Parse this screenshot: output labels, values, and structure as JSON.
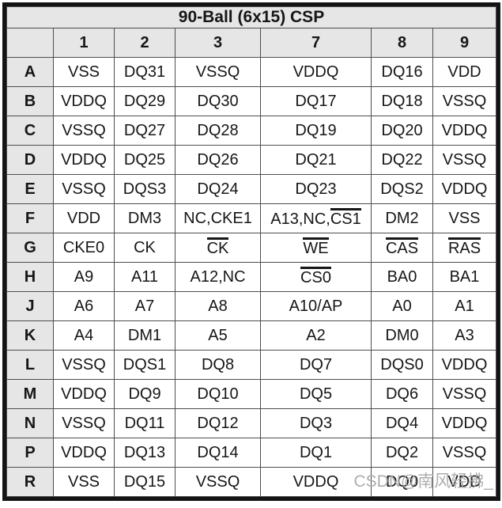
{
  "title": "90-Ball (6x15) CSP",
  "columns": [
    "1",
    "2",
    "3",
    "7",
    "8",
    "9"
  ],
  "rows": [
    {
      "label": "A",
      "cells": [
        [
          {
            "t": "VSS"
          }
        ],
        [
          {
            "t": "DQ31"
          }
        ],
        [
          {
            "t": "VSSQ"
          }
        ],
        [
          {
            "t": "VDDQ"
          }
        ],
        [
          {
            "t": "DQ16"
          }
        ],
        [
          {
            "t": "VDD"
          }
        ]
      ]
    },
    {
      "label": "B",
      "cells": [
        [
          {
            "t": "VDDQ"
          }
        ],
        [
          {
            "t": "DQ29"
          }
        ],
        [
          {
            "t": "DQ30"
          }
        ],
        [
          {
            "t": "DQ17"
          }
        ],
        [
          {
            "t": "DQ18"
          }
        ],
        [
          {
            "t": "VSSQ"
          }
        ]
      ]
    },
    {
      "label": "C",
      "cells": [
        [
          {
            "t": "VSSQ"
          }
        ],
        [
          {
            "t": "DQ27"
          }
        ],
        [
          {
            "t": "DQ28"
          }
        ],
        [
          {
            "t": "DQ19"
          }
        ],
        [
          {
            "t": "DQ20"
          }
        ],
        [
          {
            "t": "VDDQ"
          }
        ]
      ]
    },
    {
      "label": "D",
      "cells": [
        [
          {
            "t": "VDDQ"
          }
        ],
        [
          {
            "t": "DQ25"
          }
        ],
        [
          {
            "t": "DQ26"
          }
        ],
        [
          {
            "t": "DQ21"
          }
        ],
        [
          {
            "t": "DQ22"
          }
        ],
        [
          {
            "t": "VSSQ"
          }
        ]
      ]
    },
    {
      "label": "E",
      "cells": [
        [
          {
            "t": "VSSQ"
          }
        ],
        [
          {
            "t": "DQS3"
          }
        ],
        [
          {
            "t": "DQ24"
          }
        ],
        [
          {
            "t": "DQ23"
          }
        ],
        [
          {
            "t": "DQS2"
          }
        ],
        [
          {
            "t": "VDDQ"
          }
        ]
      ]
    },
    {
      "label": "F",
      "cells": [
        [
          {
            "t": "VDD"
          }
        ],
        [
          {
            "t": "DM3"
          }
        ],
        [
          {
            "t": "NC,CKE1"
          }
        ],
        [
          {
            "t": "A13,NC,"
          },
          {
            "t": "CS1",
            "over": true
          }
        ],
        [
          {
            "t": "DM2"
          }
        ],
        [
          {
            "t": "VSS"
          }
        ]
      ]
    },
    {
      "label": "G",
      "cells": [
        [
          {
            "t": "CKE0"
          }
        ],
        [
          {
            "t": "CK"
          }
        ],
        [
          {
            "t": "CK",
            "over": true
          }
        ],
        [
          {
            "t": "WE",
            "over": true
          }
        ],
        [
          {
            "t": "CAS",
            "over": true
          }
        ],
        [
          {
            "t": "RAS",
            "over": true
          }
        ]
      ]
    },
    {
      "label": "H",
      "cells": [
        [
          {
            "t": "A9"
          }
        ],
        [
          {
            "t": "A11"
          }
        ],
        [
          {
            "t": "A12,NC"
          }
        ],
        [
          {
            "t": "CS0",
            "over": true
          }
        ],
        [
          {
            "t": "BA0"
          }
        ],
        [
          {
            "t": "BA1"
          }
        ]
      ]
    },
    {
      "label": "J",
      "cells": [
        [
          {
            "t": "A6"
          }
        ],
        [
          {
            "t": "A7"
          }
        ],
        [
          {
            "t": "A8"
          }
        ],
        [
          {
            "t": "A10/AP"
          }
        ],
        [
          {
            "t": "A0"
          }
        ],
        [
          {
            "t": "A1"
          }
        ]
      ]
    },
    {
      "label": "K",
      "cells": [
        [
          {
            "t": "A4"
          }
        ],
        [
          {
            "t": "DM1"
          }
        ],
        [
          {
            "t": "A5"
          }
        ],
        [
          {
            "t": "A2"
          }
        ],
        [
          {
            "t": "DM0"
          }
        ],
        [
          {
            "t": "A3"
          }
        ]
      ]
    },
    {
      "label": "L",
      "cells": [
        [
          {
            "t": "VSSQ"
          }
        ],
        [
          {
            "t": "DQS1"
          }
        ],
        [
          {
            "t": "DQ8"
          }
        ],
        [
          {
            "t": "DQ7"
          }
        ],
        [
          {
            "t": "DQS0"
          }
        ],
        [
          {
            "t": "VDDQ"
          }
        ]
      ]
    },
    {
      "label": "M",
      "cells": [
        [
          {
            "t": "VDDQ"
          }
        ],
        [
          {
            "t": "DQ9"
          }
        ],
        [
          {
            "t": "DQ10"
          }
        ],
        [
          {
            "t": "DQ5"
          }
        ],
        [
          {
            "t": "DQ6"
          }
        ],
        [
          {
            "t": "VSSQ"
          }
        ]
      ]
    },
    {
      "label": "N",
      "cells": [
        [
          {
            "t": "VSSQ"
          }
        ],
        [
          {
            "t": "DQ11"
          }
        ],
        [
          {
            "t": "DQ12"
          }
        ],
        [
          {
            "t": "DQ3"
          }
        ],
        [
          {
            "t": "DQ4"
          }
        ],
        [
          {
            "t": "VDDQ"
          }
        ]
      ]
    },
    {
      "label": "P",
      "cells": [
        [
          {
            "t": "VDDQ"
          }
        ],
        [
          {
            "t": "DQ13"
          }
        ],
        [
          {
            "t": "DQ14"
          }
        ],
        [
          {
            "t": "DQ1"
          }
        ],
        [
          {
            "t": "DQ2"
          }
        ],
        [
          {
            "t": "VSSQ"
          }
        ]
      ]
    },
    {
      "label": "R",
      "cells": [
        [
          {
            "t": "VSS"
          }
        ],
        [
          {
            "t": "DQ15"
          }
        ],
        [
          {
            "t": "VSSQ"
          }
        ],
        [
          {
            "t": "VDDQ"
          }
        ],
        [
          {
            "t": "DQ0"
          }
        ],
        [
          {
            "t": "VDD"
          }
        ]
      ]
    }
  ],
  "watermark": "CSDN@南风轻拂_",
  "colors": {
    "header_bg": "#e6e6e6",
    "cell_bg": "#ffffff",
    "inner_border": "#4d4d4d",
    "outer_border": "#141414",
    "text": "#161616",
    "watermark": "#a6a6a6"
  }
}
